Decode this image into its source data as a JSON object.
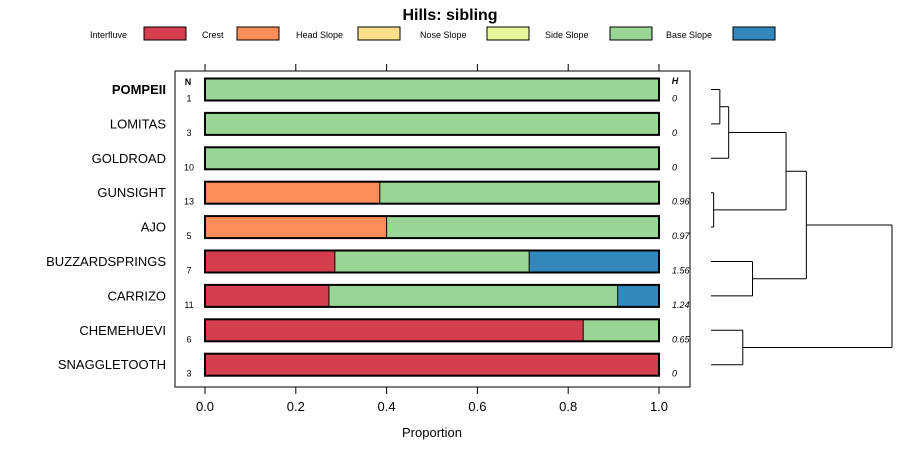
{
  "chart_data": {
    "type": "bar",
    "orientation": "horizontal-stacked",
    "title": "Hills: sibling",
    "xlabel": "Proportion",
    "xlim": [
      0,
      1
    ],
    "xticks": [
      "0.0",
      "0.2",
      "0.4",
      "0.6",
      "0.8",
      "1.0"
    ],
    "xtick_values": [
      0,
      0.2,
      0.4,
      0.6,
      0.8,
      1.0
    ],
    "n_header": "N",
    "h_header": "H",
    "legend": [
      {
        "name": "Interfluve",
        "color": "#d53e4f"
      },
      {
        "name": "Crest",
        "color": "#fc8d59"
      },
      {
        "name": "Head Slope",
        "color": "#fee08b"
      },
      {
        "name": "Nose Slope",
        "color": "#e6f598"
      },
      {
        "name": "Side Slope",
        "color": "#99d594"
      },
      {
        "name": "Base Slope",
        "color": "#3288bd"
      }
    ],
    "rows": [
      {
        "label": "POMPEII",
        "bold": true,
        "n": "1",
        "h": "0",
        "values": [
          0,
          0,
          0,
          0,
          1.0,
          0
        ]
      },
      {
        "label": "LOMITAS",
        "bold": false,
        "n": "3",
        "h": "0",
        "values": [
          0,
          0,
          0,
          0,
          1.0,
          0
        ]
      },
      {
        "label": "GOLDROAD",
        "bold": false,
        "n": "10",
        "h": "0",
        "values": [
          0,
          0,
          0,
          0,
          1.0,
          0
        ]
      },
      {
        "label": "GUNSIGHT",
        "bold": false,
        "n": "13",
        "h": "0.96",
        "values": [
          0,
          0.385,
          0,
          0,
          0.615,
          0
        ]
      },
      {
        "label": "AJO",
        "bold": false,
        "n": "5",
        "h": "0.97",
        "values": [
          0,
          0.4,
          0,
          0,
          0.6,
          0
        ]
      },
      {
        "label": "BUZZARDSPRINGS",
        "bold": false,
        "n": "7",
        "h": "1.56",
        "values": [
          0.286,
          0,
          0,
          0,
          0.428,
          0.286
        ]
      },
      {
        "label": "CARRIZO",
        "bold": false,
        "n": "11",
        "h": "1.24",
        "values": [
          0.273,
          0,
          0,
          0,
          0.636,
          0.091
        ]
      },
      {
        "label": "CHEMEHUEVI",
        "bold": false,
        "n": "6",
        "h": "0.65",
        "values": [
          0.833,
          0,
          0,
          0,
          0.167,
          0
        ]
      },
      {
        "label": "SNAGGLETOOTH",
        "bold": false,
        "n": "3",
        "h": "0",
        "values": [
          1.0,
          0,
          0,
          0,
          0,
          0
        ]
      }
    ],
    "dendrogram": {
      "merges": [
        {
          "a": 0,
          "b": 1,
          "height": 0.1
        },
        {
          "a": -1,
          "b": 2,
          "height": 0.2
        },
        {
          "a": 3,
          "b": 4,
          "height": 0.03
        },
        {
          "a": 5,
          "b": 6,
          "height": 0.47
        },
        {
          "a": 7,
          "b": 8,
          "height": 0.36
        },
        {
          "a": -2,
          "b": -3,
          "height": 0.85
        },
        {
          "a": -6,
          "b": -4,
          "height": 1.08
        },
        {
          "a": -7,
          "b": -5,
          "height": 2.05
        }
      ]
    }
  }
}
